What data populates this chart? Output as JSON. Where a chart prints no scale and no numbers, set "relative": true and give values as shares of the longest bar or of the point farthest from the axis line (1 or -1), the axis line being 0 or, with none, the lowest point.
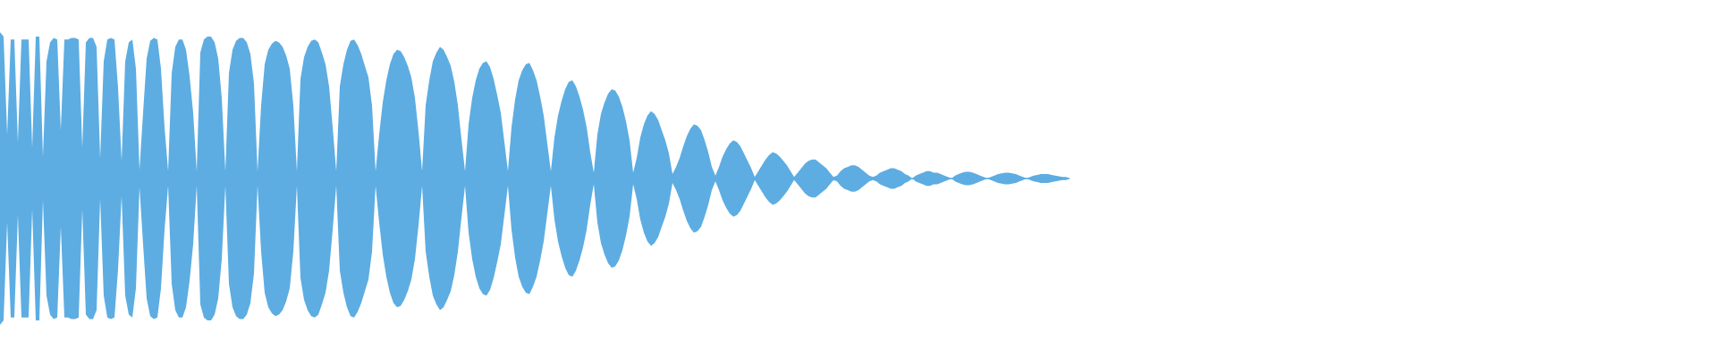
{
  "chart_data": {
    "type": "area",
    "relative": true,
    "categories": [
      null,
      null,
      null,
      null,
      null,
      null,
      null,
      null,
      null,
      null,
      null,
      null,
      null,
      null,
      null,
      null,
      null,
      null,
      null,
      null,
      null,
      null,
      null,
      null,
      null,
      null,
      null,
      null,
      null,
      null,
      null,
      null,
      null,
      null,
      null,
      null,
      null,
      null,
      null,
      null,
      null,
      null,
      null,
      null,
      null,
      null,
      null,
      null,
      null,
      null,
      null,
      null,
      null,
      null,
      null,
      null,
      null,
      null,
      null,
      null,
      null,
      null,
      null,
      null,
      null,
      null,
      null,
      null,
      null,
      null,
      null,
      null,
      null,
      null,
      null,
      null,
      null,
      null,
      null,
      null,
      null,
      null,
      null,
      null,
      null,
      null,
      null,
      null,
      null,
      null,
      null,
      null,
      null,
      null,
      null,
      null,
      null,
      null,
      null,
      null,
      null,
      null,
      null,
      null,
      null,
      null,
      null,
      null,
      null,
      null,
      null,
      null,
      null,
      null,
      null,
      null,
      null,
      null,
      null,
      null,
      null,
      null,
      null,
      null,
      null,
      null,
      null,
      null,
      null,
      null,
      null,
      null,
      null,
      null,
      null,
      null,
      null,
      null,
      null,
      null,
      null,
      null,
      null,
      null,
      null,
      null,
      null,
      null,
      null,
      null,
      null,
      null,
      null,
      null,
      null,
      null,
      null,
      null,
      null,
      null,
      null,
      null,
      null,
      null,
      null,
      null,
      null,
      null,
      null,
      null,
      null,
      null,
      null,
      null,
      null,
      null,
      null,
      null,
      null,
      null,
      null,
      null,
      null,
      null,
      null,
      null,
      null,
      null,
      null,
      null,
      null,
      null,
      null,
      null,
      null,
      null,
      null,
      null,
      null,
      null,
      null,
      null,
      null,
      null,
      null,
      null,
      null,
      null,
      null,
      null,
      null,
      null,
      null,
      null,
      null,
      null,
      null,
      null,
      null,
      null,
      null,
      null,
      null,
      null,
      null,
      null,
      null,
      null,
      null,
      null,
      null,
      null,
      null,
      null,
      null,
      null,
      null,
      null,
      null,
      null,
      null,
      null,
      null,
      null,
      null,
      null,
      null,
      null,
      null,
      null,
      null,
      null,
      null,
      null,
      null,
      null,
      null,
      null,
      null,
      null,
      null,
      null,
      null,
      null,
      null,
      null,
      null,
      null,
      null,
      null,
      null,
      null,
      null,
      null,
      null,
      null,
      null,
      null,
      null,
      null,
      null,
      null,
      null,
      null,
      null,
      null,
      null,
      null,
      null,
      null,
      null,
      null,
      null,
      null,
      null,
      null,
      null,
      null,
      null,
      null
    ],
    "series": [
      {
        "color": "#5dade2",
        "values": [
          1.0,
          0.97,
          0.3,
          0.95,
          0.95,
          0.25,
          0.95,
          0.95,
          0.95,
          0.21,
          0.97,
          0.97,
          0.15,
          0.8,
          0.93,
          0.96,
          0.95,
          0.33,
          0.95,
          0.95,
          0.96,
          0.96,
          0.95,
          0.21,
          0.93,
          0.96,
          0.96,
          0.9,
          0.14,
          0.8,
          0.95,
          0.96,
          0.95,
          0.62,
          0.12,
          0.8,
          0.93,
          0.95,
          0.75,
          0.06,
          0.45,
          0.82,
          0.94,
          0.96,
          0.95,
          0.75,
          0.35,
          0.05,
          0.72,
          0.9,
          0.95,
          0.95,
          0.88,
          0.7,
          0.45,
          0.05,
          0.86,
          0.95,
          0.97,
          0.97,
          0.93,
          0.82,
          0.55,
          0.05,
          0.72,
          0.88,
          0.94,
          0.96,
          0.96,
          0.93,
          0.85,
          0.65,
          0.05,
          0.5,
          0.78,
          0.88,
          0.92,
          0.94,
          0.93,
          0.9,
          0.84,
          0.75,
          0.5,
          0.05,
          0.68,
          0.83,
          0.9,
          0.94,
          0.95,
          0.93,
          0.86,
          0.78,
          0.63,
          0.35,
          0.05,
          0.63,
          0.78,
          0.88,
          0.94,
          0.95,
          0.91,
          0.85,
          0.77,
          0.69,
          0.5,
          0.05,
          0.3,
          0.52,
          0.67,
          0.78,
          0.85,
          0.88,
          0.87,
          0.83,
          0.77,
          0.69,
          0.55,
          0.32,
          0.05,
          0.5,
          0.67,
          0.8,
          0.86,
          0.9,
          0.88,
          0.83,
          0.77,
          0.66,
          0.5,
          0.27,
          0.05,
          0.37,
          0.55,
          0.67,
          0.75,
          0.79,
          0.8,
          0.76,
          0.68,
          0.57,
          0.45,
          0.25,
          0.05,
          0.35,
          0.54,
          0.67,
          0.74,
          0.78,
          0.79,
          0.74,
          0.67,
          0.56,
          0.43,
          0.24,
          0.05,
          0.28,
          0.43,
          0.53,
          0.61,
          0.66,
          0.67,
          0.63,
          0.56,
          0.47,
          0.35,
          0.18,
          0.04,
          0.3,
          0.44,
          0.52,
          0.58,
          0.61,
          0.6,
          0.56,
          0.49,
          0.39,
          0.26,
          0.04,
          0.14,
          0.28,
          0.37,
          0.43,
          0.46,
          0.44,
          0.4,
          0.33,
          0.26,
          0.17,
          0.03,
          0.08,
          0.14,
          0.22,
          0.29,
          0.34,
          0.37,
          0.36,
          0.33,
          0.26,
          0.18,
          0.08,
          0.02,
          0.08,
          0.15,
          0.2,
          0.24,
          0.26,
          0.25,
          0.22,
          0.17,
          0.12,
          0.07,
          0.01,
          0.05,
          0.09,
          0.13,
          0.16,
          0.18,
          0.17,
          0.15,
          0.12,
          0.09,
          0.05,
          0.01,
          0.04,
          0.07,
          0.1,
          0.12,
          0.13,
          0.13,
          0.11,
          0.09,
          0.07,
          0.04,
          0.01,
          0.02,
          0.05,
          0.07,
          0.08,
          0.09,
          0.09,
          0.08,
          0.06,
          0.04,
          0.02,
          0.01,
          0.02,
          0.04,
          0.05,
          0.06,
          0.07,
          0.07,
          0.06,
          0.05,
          0.03,
          0.02,
          0,
          0.02,
          0.03,
          0.04,
          0.05,
          0.05,
          0.04,
          0.04,
          0.03,
          0.02,
          0.01,
          0,
          0.02,
          0.03,
          0.04,
          0.045,
          0.045,
          0.04,
          0.03,
          0.02,
          0.01,
          0,
          0.01,
          0.02,
          0.03,
          0.035,
          0.04,
          0.04,
          0.035,
          0.03,
          0.02,
          0.01,
          0,
          0.01,
          0.02,
          0.025,
          0.03,
          0.03,
          0.03,
          0.025,
          0.02,
          0.015,
          0.01,
          0.01,
          0
        ]
      },
      {
        "color": "#5dade2",
        "values": [
          -1.0,
          -0.97,
          -0.3,
          -0.95,
          -0.95,
          -0.25,
          -0.95,
          -0.95,
          -0.95,
          -0.21,
          -0.97,
          -0.97,
          -0.15,
          -0.8,
          -0.93,
          -0.96,
          -0.95,
          -0.33,
          -0.95,
          -0.95,
          -0.96,
          -0.96,
          -0.95,
          -0.21,
          -0.93,
          -0.96,
          -0.96,
          -0.9,
          -0.14,
          -0.8,
          -0.95,
          -0.96,
          -0.95,
          -0.62,
          -0.12,
          -0.8,
          -0.93,
          -0.95,
          -0.75,
          -0.06,
          -0.45,
          -0.82,
          -0.94,
          -0.96,
          -0.95,
          -0.75,
          -0.35,
          -0.05,
          -0.72,
          -0.9,
          -0.95,
          -0.95,
          -0.88,
          -0.7,
          -0.45,
          -0.05,
          -0.86,
          -0.95,
          -0.97,
          -0.97,
          -0.93,
          -0.82,
          -0.55,
          -0.05,
          -0.72,
          -0.88,
          -0.94,
          -0.96,
          -0.96,
          -0.93,
          -0.85,
          -0.65,
          -0.05,
          -0.5,
          -0.78,
          -0.88,
          -0.92,
          -0.94,
          -0.93,
          -0.9,
          -0.84,
          -0.75,
          -0.5,
          -0.05,
          -0.68,
          -0.83,
          -0.9,
          -0.94,
          -0.95,
          -0.93,
          -0.86,
          -0.78,
          -0.63,
          -0.35,
          -0.05,
          -0.63,
          -0.78,
          -0.88,
          -0.94,
          -0.95,
          -0.91,
          -0.85,
          -0.77,
          -0.69,
          -0.5,
          -0.05,
          -0.3,
          -0.52,
          -0.67,
          -0.78,
          -0.85,
          -0.88,
          -0.87,
          -0.83,
          -0.77,
          -0.69,
          -0.55,
          -0.32,
          -0.05,
          -0.5,
          -0.67,
          -0.8,
          -0.86,
          -0.9,
          -0.88,
          -0.83,
          -0.77,
          -0.66,
          -0.5,
          -0.27,
          -0.05,
          -0.37,
          -0.55,
          -0.67,
          -0.75,
          -0.79,
          -0.8,
          -0.76,
          -0.68,
          -0.57,
          -0.45,
          -0.25,
          -0.05,
          -0.35,
          -0.54,
          -0.67,
          -0.74,
          -0.78,
          -0.79,
          -0.74,
          -0.67,
          -0.56,
          -0.43,
          -0.24,
          -0.05,
          -0.28,
          -0.43,
          -0.53,
          -0.61,
          -0.66,
          -0.67,
          -0.63,
          -0.56,
          -0.47,
          -0.35,
          -0.18,
          -0.04,
          -0.3,
          -0.44,
          -0.52,
          -0.58,
          -0.61,
          -0.6,
          -0.56,
          -0.49,
          -0.39,
          -0.26,
          -0.04,
          -0.14,
          -0.28,
          -0.37,
          -0.43,
          -0.46,
          -0.44,
          -0.4,
          -0.33,
          -0.26,
          -0.17,
          -0.03,
          -0.08,
          -0.14,
          -0.22,
          -0.29,
          -0.34,
          -0.37,
          -0.36,
          -0.33,
          -0.26,
          -0.18,
          -0.08,
          -0.02,
          -0.08,
          -0.15,
          -0.2,
          -0.24,
          -0.26,
          -0.25,
          -0.22,
          -0.17,
          -0.12,
          -0.07,
          -0.01,
          -0.05,
          -0.09,
          -0.13,
          -0.16,
          -0.18,
          -0.17,
          -0.15,
          -0.12,
          -0.09,
          -0.05,
          -0.01,
          -0.04,
          -0.07,
          -0.1,
          -0.12,
          -0.13,
          -0.13,
          -0.11,
          -0.09,
          -0.07,
          -0.04,
          -0.01,
          -0.02,
          -0.05,
          -0.07,
          -0.08,
          -0.09,
          -0.09,
          -0.08,
          -0.06,
          -0.04,
          -0.02,
          -0.01,
          -0.02,
          -0.04,
          -0.05,
          -0.06,
          -0.07,
          -0.07,
          -0.06,
          -0.05,
          -0.03,
          -0.02,
          0,
          -0.02,
          -0.03,
          -0.04,
          -0.05,
          -0.05,
          -0.04,
          -0.04,
          -0.03,
          -0.02,
          -0.01,
          0,
          -0.02,
          -0.03,
          -0.04,
          -0.045,
          -0.045,
          -0.04,
          -0.03,
          -0.02,
          -0.01,
          0,
          -0.01,
          -0.02,
          -0.03,
          -0.035,
          -0.04,
          -0.04,
          -0.035,
          -0.03,
          -0.02,
          -0.01,
          0,
          -0.01,
          -0.02,
          -0.025,
          -0.03,
          -0.03,
          -0.03,
          -0.025,
          -0.02,
          -0.015,
          -0.01,
          -0.01,
          0
        ]
      }
    ],
    "ref_lines": [
      {
        "axis": "y",
        "value": 0,
        "color": "#5dade2"
      }
    ]
  }
}
